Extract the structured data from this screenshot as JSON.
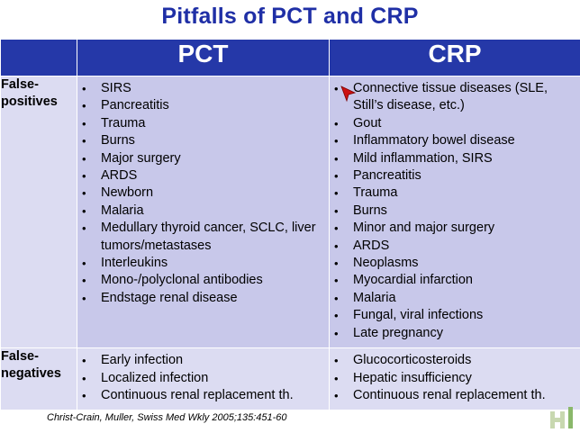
{
  "title": "Pitfalls of PCT and CRP",
  "columns": {
    "pct": "PCT",
    "crp": "CRP"
  },
  "rows": [
    {
      "label": "False-\npositives",
      "pct": [
        "SIRS",
        "Pancreatitis",
        "Trauma",
        "Burns",
        "Major surgery",
        "ARDS",
        "Newborn",
        "Malaria",
        "Medullary thyroid cancer, SCLC, liver tumors/metastases",
        "Interleukins",
        "Mono-/polyclonal antibodies",
        "Endstage renal disease"
      ],
      "crp": [
        "Connective tissue diseases (SLE, Still’s disease, etc.)",
        "Gout",
        "Inflammatory bowel disease",
        "Mild inflammation, SIRS",
        "Pancreatitis",
        "Trauma",
        "Burns",
        "Minor and major surgery",
        "ARDS",
        "Neoplasms",
        "Myocardial infarction",
        "Malaria",
        "Fungal, viral infections",
        "Late pregnancy"
      ]
    },
    {
      "label": "False-\nnegatives",
      "pct": [
        "Early infection",
        "Localized infection",
        "Continuous renal replacement th."
      ],
      "crp": [
        "Glucocorticosteroids",
        "Hepatic insufficiency",
        "Continuous renal replacement th."
      ]
    }
  ],
  "citation": "Christ-Crain, Muller, Swiss Med Wkly 2005;135:451-60",
  "colors": {
    "title": "#1f2fa6",
    "header_bg": "#2538a8",
    "cell_bg": "#c8c8ea",
    "label_bg": "#dcdcf2",
    "cursor": "#cc1111"
  },
  "icons": {
    "cursor": "red-arrow-pointer-icon",
    "logo": "hi-logo-icon"
  }
}
